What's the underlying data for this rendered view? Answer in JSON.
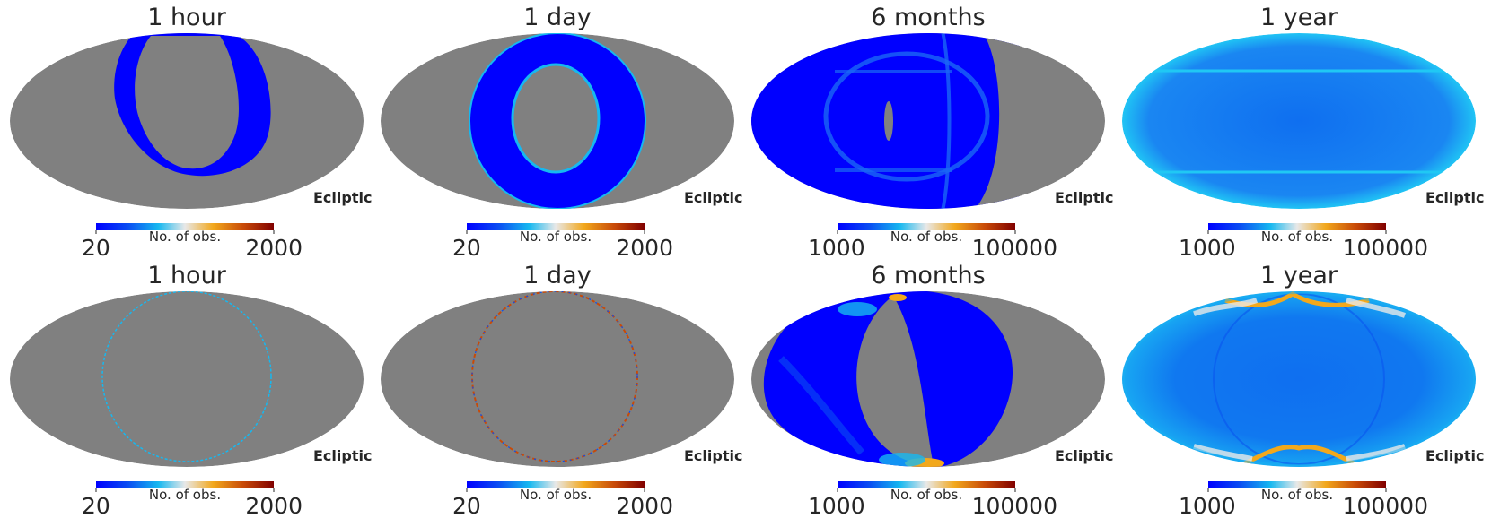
{
  "chart_data": {
    "type": "heatmap",
    "projection": "mollweide",
    "coord_label": "Ecliptic",
    "colorbar_label": "No. of obs.",
    "colormap": [
      "#0000ff",
      "#0a4ef2",
      "#16b8f0",
      "#e8e8e8",
      "#f2a81c",
      "#c84a08",
      "#800000"
    ],
    "masked_color": "#808080",
    "panels": [
      {
        "row": 1,
        "title": "1 hour",
        "coverage": "ring-thick",
        "cbar_min": "20",
        "cbar_max": "2000"
      },
      {
        "row": 1,
        "title": "1 day",
        "coverage": "annulus",
        "cbar_min": "20",
        "cbar_max": "2000"
      },
      {
        "row": 1,
        "title": "6 months",
        "coverage": "half-sky",
        "cbar_min": "1000",
        "cbar_max": "100000"
      },
      {
        "row": 1,
        "title": "1 year",
        "coverage": "full-sky",
        "cbar_min": "1000",
        "cbar_max": "100000"
      },
      {
        "row": 2,
        "title": "1 hour",
        "coverage": "ring-thin",
        "cbar_min": "20",
        "cbar_max": "2000"
      },
      {
        "row": 2,
        "title": "1 day",
        "coverage": "ring-thin",
        "cbar_min": "20",
        "cbar_max": "2000"
      },
      {
        "row": 2,
        "title": "6 months",
        "coverage": "crescent",
        "cbar_min": "1000",
        "cbar_max": "100000"
      },
      {
        "row": 2,
        "title": "1 year",
        "coverage": "full-sky",
        "cbar_min": "1000",
        "cbar_max": "100000"
      }
    ]
  }
}
